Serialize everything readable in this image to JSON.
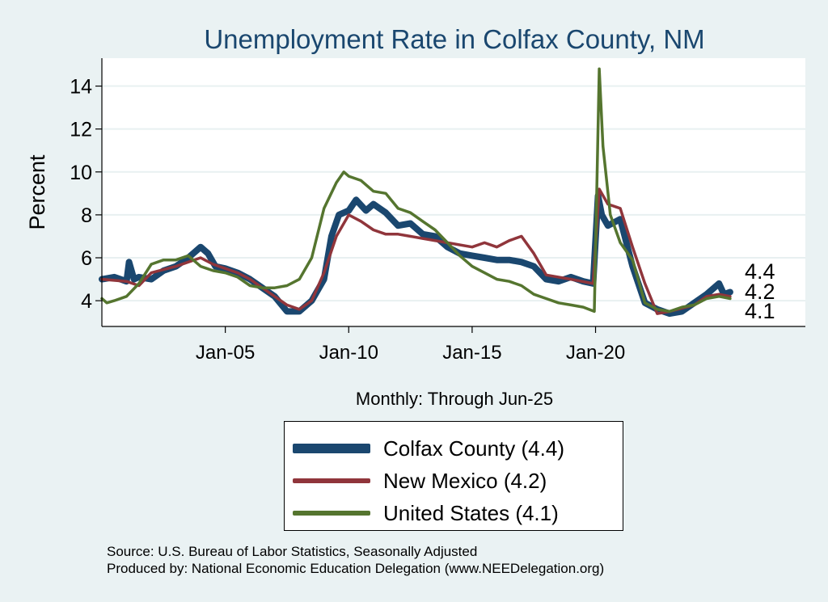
{
  "chart_data": {
    "type": "line",
    "title": "Unemployment Rate in Colfax  County, NM",
    "ylabel": "Percent",
    "xlabel": "Monthly: Through Jun-25",
    "ylim": [
      2.8,
      15.3
    ],
    "yticks": [
      4,
      6,
      8,
      10,
      12,
      14
    ],
    "xlim": [
      2000.0,
      2028.5
    ],
    "xticks": [
      {
        "label": "Jan-05",
        "value": 2005.0
      },
      {
        "label": "Jan-10",
        "value": 2010.0
      },
      {
        "label": "Jan-15",
        "value": 2015.0
      },
      {
        "label": "Jan-20",
        "value": 2020.0
      }
    ],
    "grid": true,
    "legend_position": "bottom",
    "end_labels": [
      "4.4",
      "4.2",
      "4.1"
    ],
    "series": [
      {
        "name": "Colfax  County (4.4)",
        "color": "#1a476f",
        "x": [
          2000.0,
          2000.5,
          2001.0,
          2001.1,
          2001.3,
          2001.5,
          2002.0,
          2002.5,
          2003.0,
          2003.5,
          2004.0,
          2004.3,
          2004.6,
          2005.0,
          2005.5,
          2006.0,
          2006.5,
          2007.0,
          2007.5,
          2008.0,
          2008.5,
          2009.0,
          2009.3,
          2009.6,
          2010.0,
          2010.3,
          2010.7,
          2011.0,
          2011.5,
          2012.0,
          2012.5,
          2013.0,
          2013.5,
          2014.0,
          2014.5,
          2015.0,
          2015.5,
          2016.0,
          2016.5,
          2017.0,
          2017.5,
          2018.0,
          2018.5,
          2019.0,
          2019.5,
          2019.9,
          2020.1,
          2020.25,
          2020.5,
          2021.0,
          2021.5,
          2022.0,
          2022.5,
          2023.0,
          2023.5,
          2024.0,
          2024.5,
          2025.0,
          2025.2,
          2025.45
        ],
        "y": [
          5.0,
          5.1,
          4.9,
          5.8,
          5.0,
          5.1,
          5.0,
          5.4,
          5.6,
          6.0,
          6.5,
          6.2,
          5.6,
          5.5,
          5.3,
          5.0,
          4.6,
          4.2,
          3.5,
          3.5,
          4.0,
          5.0,
          7.0,
          8.0,
          8.2,
          8.7,
          8.2,
          8.5,
          8.1,
          7.5,
          7.6,
          7.1,
          7.0,
          6.5,
          6.2,
          6.1,
          6.0,
          5.9,
          5.9,
          5.8,
          5.6,
          5.0,
          4.9,
          5.1,
          4.9,
          4.8,
          8.9,
          8.0,
          7.5,
          7.8,
          5.6,
          3.9,
          3.6,
          3.4,
          3.5,
          3.9,
          4.3,
          4.8,
          4.3,
          4.4
        ]
      },
      {
        "name": "New Mexico (4.2)",
        "color": "#90353b",
        "x": [
          2000.0,
          2001.0,
          2001.5,
          2002.0,
          2003.0,
          2003.5,
          2004.0,
          2004.5,
          2005.0,
          2005.5,
          2006.0,
          2006.5,
          2007.0,
          2007.5,
          2008.0,
          2008.5,
          2009.0,
          2009.5,
          2010.0,
          2010.5,
          2011.0,
          2011.5,
          2012.0,
          2013.0,
          2014.0,
          2015.0,
          2015.5,
          2016.0,
          2016.5,
          2017.0,
          2017.5,
          2018.0,
          2019.0,
          2019.9,
          2020.15,
          2020.5,
          2021.0,
          2021.5,
          2022.0,
          2022.5,
          2023.0,
          2024.0,
          2024.5,
          2025.0,
          2025.45
        ],
        "y": [
          5.0,
          4.9,
          4.7,
          5.3,
          5.6,
          5.8,
          6.0,
          5.7,
          5.5,
          5.3,
          5.0,
          4.6,
          4.2,
          3.8,
          3.6,
          4.0,
          5.3,
          7.0,
          8.0,
          7.7,
          7.3,
          7.1,
          7.1,
          6.9,
          6.7,
          6.5,
          6.7,
          6.5,
          6.8,
          7.0,
          6.2,
          5.2,
          5.0,
          4.8,
          9.2,
          8.5,
          8.3,
          6.5,
          4.8,
          3.4,
          3.5,
          3.8,
          4.2,
          4.3,
          4.2
        ]
      },
      {
        "name": "United States (4.1)",
        "color": "#55752f",
        "x": [
          2000.0,
          2000.2,
          2000.5,
          2001.0,
          2001.5,
          2002.0,
          2002.5,
          2003.0,
          2003.5,
          2004.0,
          2004.5,
          2005.0,
          2005.5,
          2006.0,
          2006.5,
          2007.0,
          2007.5,
          2008.0,
          2008.5,
          2009.0,
          2009.5,
          2009.8,
          2010.0,
          2010.5,
          2011.0,
          2011.5,
          2012.0,
          2012.5,
          2013.0,
          2013.5,
          2014.0,
          2014.5,
          2015.0,
          2015.5,
          2016.0,
          2016.5,
          2017.0,
          2017.5,
          2018.0,
          2018.5,
          2019.0,
          2019.5,
          2019.95,
          2020.15,
          2020.3,
          2020.6,
          2021.0,
          2021.5,
          2022.0,
          2022.5,
          2023.0,
          2023.5,
          2024.0,
          2024.5,
          2025.0,
          2025.45
        ],
        "y": [
          4.1,
          3.9,
          4.0,
          4.2,
          4.8,
          5.7,
          5.9,
          5.9,
          6.1,
          5.6,
          5.4,
          5.3,
          5.1,
          4.7,
          4.6,
          4.6,
          4.7,
          5.0,
          6.0,
          8.3,
          9.5,
          10.0,
          9.8,
          9.6,
          9.1,
          9.0,
          8.3,
          8.1,
          7.7,
          7.3,
          6.7,
          6.1,
          5.6,
          5.3,
          5.0,
          4.9,
          4.7,
          4.3,
          4.1,
          3.9,
          3.8,
          3.7,
          3.5,
          14.8,
          11.2,
          8.0,
          6.7,
          5.9,
          3.9,
          3.6,
          3.5,
          3.7,
          3.8,
          4.1,
          4.2,
          4.1
        ]
      }
    ],
    "source_lines": [
      "Source: U.S. Bureau of Labor Statistics, Seasonally Adjusted",
      "Produced by: National Economic Education Delegation (www.NEEDelegation.org)"
    ]
  }
}
